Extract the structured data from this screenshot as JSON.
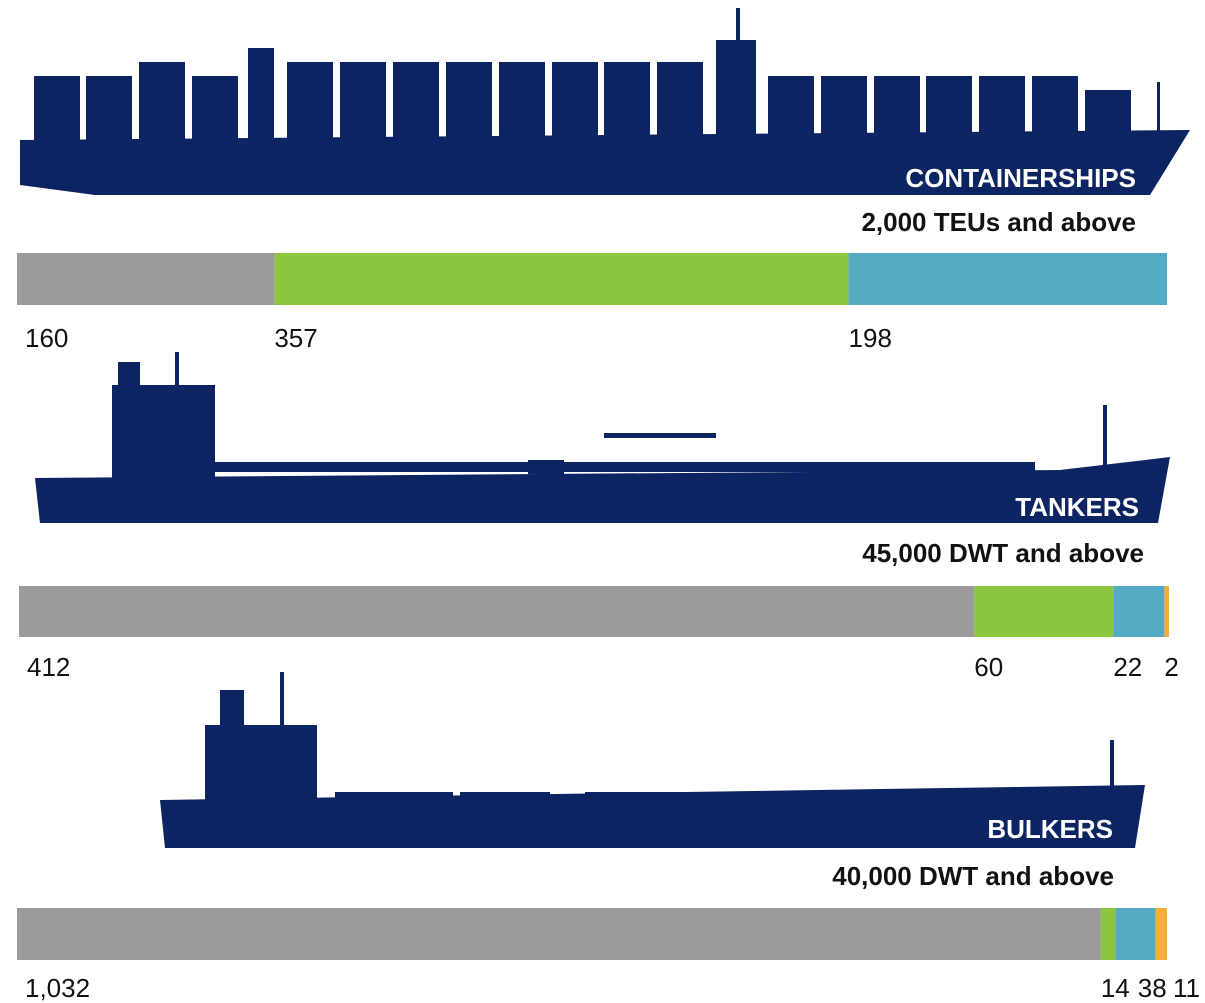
{
  "chart_data": [
    {
      "type": "stacked-bar",
      "title": "CONTAINERSHIPS",
      "subtitle": "2,000 TEUs and above",
      "values": [
        160,
        357,
        198
      ],
      "value_labels": [
        "160",
        "357",
        "198"
      ],
      "colors": [
        "#9b9b9b",
        "#8cc63f",
        "#55abc4"
      ]
    },
    {
      "type": "stacked-bar",
      "title": "TANKERS",
      "subtitle": "45,000 DWT and above",
      "values": [
        412,
        60,
        22,
        2
      ],
      "value_labels": [
        "412",
        "60",
        "22",
        "2"
      ],
      "colors": [
        "#9b9b9b",
        "#8cc63f",
        "#55abc4",
        "#f7ad3c"
      ]
    },
    {
      "type": "stacked-bar",
      "title": "BULKERS",
      "subtitle": "40,000 DWT and above",
      "values": [
        1032,
        14,
        38,
        11
      ],
      "value_labels": [
        "1,032",
        "14",
        "38",
        "11"
      ],
      "colors": [
        "#9b9b9b",
        "#8cc63f",
        "#55abc4",
        "#f7ad3c"
      ]
    }
  ]
}
